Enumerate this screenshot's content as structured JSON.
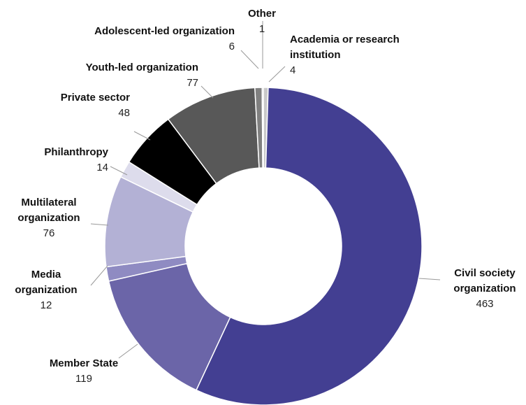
{
  "chart_data": {
    "type": "donut",
    "categories": [
      "Academia or research institution",
      "Civil society organization",
      "Member State",
      "Media organization",
      "Multilateral organization",
      "Philanthropy",
      "Private sector",
      "Youth-led organization",
      "Adolescent-led organization",
      "Other"
    ],
    "values": [
      4,
      463,
      119,
      12,
      76,
      14,
      48,
      77,
      6,
      1
    ],
    "colors": [
      "#c9c9c9",
      "#433f92",
      "#6b65a8",
      "#8f8bc2",
      "#b3b1d5",
      "#dddcec",
      "#000000",
      "#585858",
      "#808080",
      "#a8a8a8"
    ]
  }
}
